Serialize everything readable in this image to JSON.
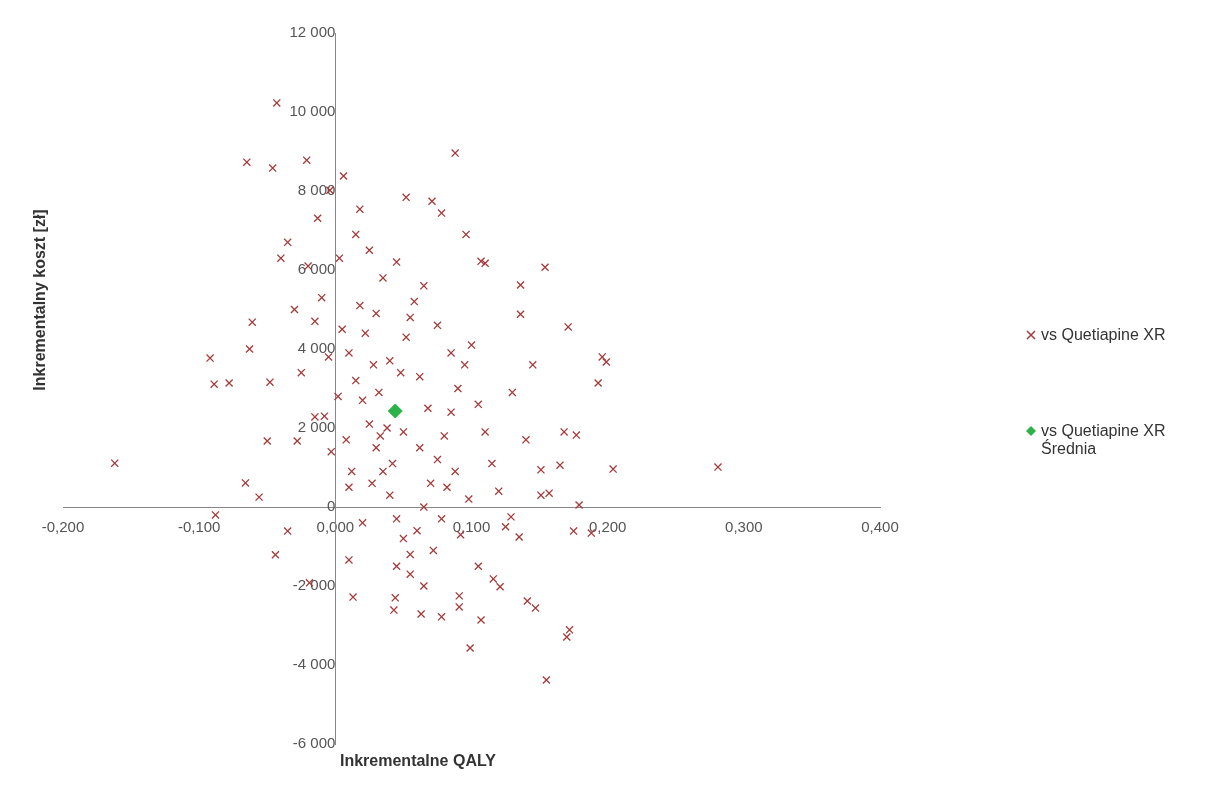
{
  "chart_data": {
    "type": "scatter",
    "xlabel": "Inkrementalne QALY",
    "ylabel": "Inkrementalny koszt [zł]",
    "xlim": [
      -0.2,
      0.4
    ],
    "xticks": [
      {
        "value": -0.2,
        "label": "-0,200"
      },
      {
        "value": -0.1,
        "label": "-0,100"
      },
      {
        "value": 0,
        "label": "0,000"
      },
      {
        "value": 0.1,
        "label": "0,100"
      },
      {
        "value": 0.2,
        "label": "0,200"
      },
      {
        "value": 0.3,
        "label": "0,300"
      },
      {
        "value": 0.4,
        "label": "0,400"
      }
    ],
    "ylim": [
      -6000,
      12000
    ],
    "yticks": [
      {
        "value": -6000,
        "label": "-6 000"
      },
      {
        "value": -4000,
        "label": "-4 000"
      },
      {
        "value": -2000,
        "label": "-2 000"
      },
      0,
      {
        "value": 2000,
        "label": "2 000"
      },
      {
        "value": 4000,
        "label": "4 000"
      },
      {
        "value": 6000,
        "label": "6 000"
      },
      {
        "value": 8000,
        "label": "8 000"
      },
      {
        "value": 10000,
        "label": "10 000"
      },
      {
        "value": 12000,
        "label": "12 000"
      }
    ],
    "legend": "right",
    "series": [
      {
        "name": "vs Quetiapine XR",
        "color": "#a33b3a",
        "marker": "cross",
        "x": [
          -0.162,
          -0.043,
          -0.065,
          -0.046,
          -0.021,
          0.006,
          0.088,
          -0.088,
          -0.092,
          -0.089,
          -0.078,
          -0.066,
          -0.056,
          -0.061,
          -0.063,
          -0.05,
          -0.048,
          -0.044,
          -0.035,
          0.281,
          0.204,
          0.196,
          0.199,
          0.193,
          0.171,
          0.154,
          0.177,
          0.168,
          0.165,
          0.17,
          0.172,
          0.155,
          0.099,
          0.147,
          0.141,
          0.121,
          0.116,
          0.136,
          0.136,
          0.096,
          0.107,
          0.11,
          0.052,
          0.071,
          0.078,
          0.018,
          -0.013,
          -0.004,
          0.063,
          0.078,
          0.091,
          0.107,
          0.044,
          0.043,
          0.091,
          0.179,
          0.175,
          0.188,
          0.151,
          0.157,
          0.129,
          0.135,
          0.151,
          0.013,
          0.01,
          -0.019,
          -0.028,
          -0.015,
          0.005,
          0.01,
          0.015,
          0.02,
          0.025,
          0.03,
          0.035,
          0.04,
          0.045,
          0.05,
          0.055,
          0.06,
          0.065,
          0.07,
          0.075,
          0.08,
          0.085,
          0.09,
          0.095,
          0.1,
          0.002,
          0.008,
          0.012,
          0.018,
          0.022,
          0.028,
          0.032,
          0.038,
          0.042,
          0.048,
          0.052,
          0.058,
          0.062,
          0.068,
          0.072,
          0.078,
          0.082,
          0.088,
          0.092,
          0.098,
          -0.005,
          -0.01,
          -0.008,
          -0.015,
          -0.02,
          -0.025,
          -0.003,
          0.003,
          0.015,
          0.025,
          0.035,
          0.045,
          0.055,
          0.065,
          0.075,
          0.085,
          0.105,
          0.11,
          0.115,
          0.12,
          0.125,
          0.13,
          0.105,
          0.065,
          0.055,
          0.045,
          0.02,
          0.01,
          0.03,
          0.04,
          -0.03,
          -0.035,
          -0.04,
          0.062,
          0.05,
          0.033,
          0.027,
          0.14,
          0.145
        ],
        "values": [
          1110,
          10230,
          8730,
          8580,
          8780,
          8380,
          8960,
          -200,
          3770,
          3110,
          3140,
          610,
          250,
          4680,
          4000,
          1670,
          3160,
          -1210,
          -610,
          1010,
          960,
          3800,
          3670,
          3140,
          4560,
          6070,
          1820,
          1900,
          1060,
          -3290,
          -3110,
          -4380,
          -3570,
          -2560,
          -2380,
          -2020,
          -1820,
          5620,
          4880,
          6900,
          6220,
          6170,
          7840,
          7740,
          7440,
          7540,
          7310,
          8020,
          -2710,
          -2780,
          -2250,
          -2860,
          -2300,
          -2610,
          -2530,
          50,
          -610,
          -660,
          300,
          350,
          -250,
          -760,
          940,
          -2280,
          -1340,
          -1920,
          1670,
          2280,
          4500,
          3900,
          3200,
          2700,
          2100,
          1500,
          900,
          300,
          -300,
          -800,
          -1200,
          -600,
          0,
          600,
          1200,
          1800,
          2400,
          3000,
          3600,
          4100,
          2800,
          1700,
          900,
          5100,
          4400,
          3600,
          2900,
          2000,
          1100,
          3400,
          4300,
          5200,
          3300,
          2500,
          -1100,
          -300,
          500,
          900,
          -700,
          200,
          3800,
          5300,
          2300,
          4700,
          6100,
          3400,
          1400,
          6300,
          6900,
          6500,
          5800,
          6200,
          4800,
          5600,
          4600,
          3900,
          2600,
          1900,
          1100,
          400,
          -500,
          2900,
          -1500,
          -2000,
          -1700,
          -1500,
          -400,
          500,
          4900,
          3700,
          5000,
          6700,
          6300,
          1500,
          1900,
          1800,
          600,
          1700,
          3600
        ]
      },
      {
        "name": "vs Quetiapine XR Średnia",
        "color": "#2db24a",
        "marker": "diamond",
        "x": [
          0.044
        ],
        "values": [
          2430
        ]
      }
    ]
  }
}
